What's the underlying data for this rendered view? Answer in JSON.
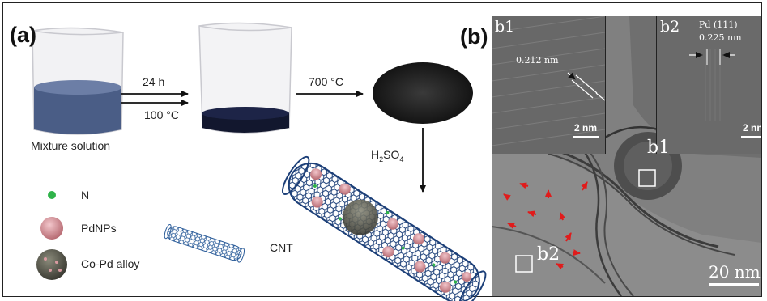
{
  "panel_a": {
    "label": "(a)",
    "step1_top": "24 h",
    "step1_bottom": "100 °C",
    "step2": "700 °C",
    "beaker1_caption": "Mixture solution",
    "acid_base": "H",
    "acid_sub1": "2",
    "acid_mid": "SO",
    "acid_sub2": "4",
    "cnt_label": "CNT",
    "legend": [
      {
        "label": "N"
      },
      {
        "label": "PdNPs"
      },
      {
        "label": "Co-Pd alloy"
      }
    ]
  },
  "panel_b": {
    "label": "(b)",
    "inset1": {
      "id": "b1",
      "spacing": "0.212 nm",
      "scale": "2 nm"
    },
    "inset2": {
      "id": "b2",
      "plane": "Pd (111)",
      "spacing": "0.225 nm",
      "scale": "2 nm"
    },
    "main_marker1": "b1",
    "main_marker2": "b2",
    "main_scale": "20 nm"
  },
  "colors": {
    "liquid": "#4a5d86",
    "liquid_dark": "#12172e",
    "nitrogen": "#2fb34a",
    "pd": "#d99aa0",
    "tube": "#1c3f78",
    "arrow_red": "#e01b1b"
  }
}
